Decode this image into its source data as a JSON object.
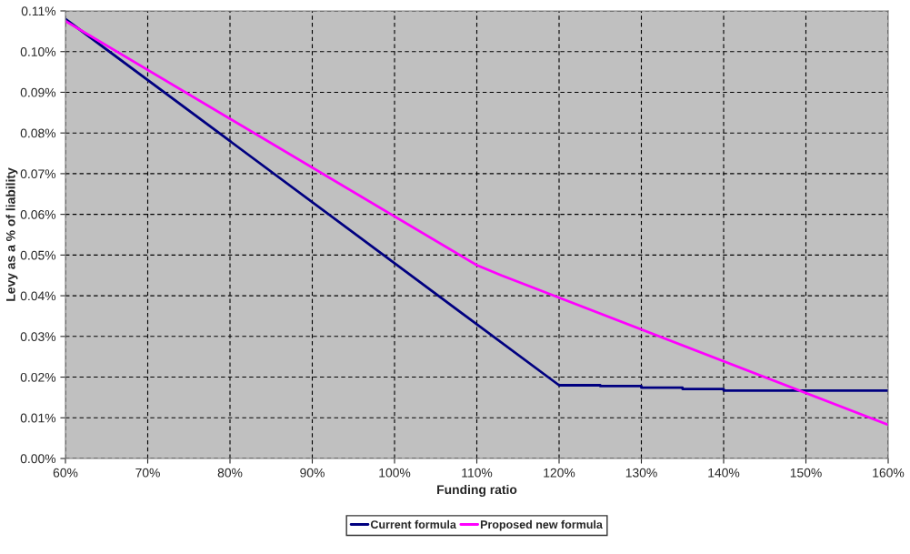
{
  "chart_data": {
    "type": "line",
    "xlabel": "Funding ratio",
    "ylabel": "Levy as a % of liability",
    "series": [
      {
        "name": "Current formula",
        "color": "#000080",
        "x": [
          60,
          120,
          125,
          125,
          130,
          130,
          135,
          135,
          140,
          140,
          160
        ],
        "values": [
          0.108,
          0.018,
          0.018,
          0.0178,
          0.0178,
          0.0174,
          0.0174,
          0.0171,
          0.0171,
          0.0167,
          0.0167
        ]
      },
      {
        "name": "Proposed new formula",
        "color": "#ff00ff",
        "x": [
          60,
          110,
          113,
          160
        ],
        "values": [
          0.1075,
          0.0475,
          0.045,
          0.0083
        ]
      }
    ],
    "xlim": [
      60,
      160
    ],
    "xticks": [
      {
        "value": 60,
        "label": "60%"
      },
      {
        "value": 70,
        "label": "70%"
      },
      {
        "value": 80,
        "label": "80%"
      },
      {
        "value": 90,
        "label": "90%"
      },
      {
        "value": 100,
        "label": "100%"
      },
      {
        "value": 110,
        "label": "110%"
      },
      {
        "value": 120,
        "label": "120%"
      },
      {
        "value": 130,
        "label": "130%"
      },
      {
        "value": 140,
        "label": "140%"
      },
      {
        "value": 150,
        "label": "150%"
      },
      {
        "value": 160,
        "label": "160%"
      }
    ],
    "ylim": [
      0,
      0.11
    ],
    "yticks": [
      {
        "value": 0,
        "label": "0.00%"
      },
      {
        "value": 0.01,
        "label": "0.01%"
      },
      {
        "value": 0.02,
        "label": "0.02%"
      },
      {
        "value": 0.03,
        "label": "0.03%"
      },
      {
        "value": 0.04,
        "label": "0.04%"
      },
      {
        "value": 0.05,
        "label": "0.05%"
      },
      {
        "value": 0.06,
        "label": "0.06%"
      },
      {
        "value": 0.07,
        "label": "0.07%"
      },
      {
        "value": 0.08,
        "label": "0.08%"
      },
      {
        "value": 0.09,
        "label": "0.09%"
      },
      {
        "value": 0.1,
        "label": "0.10%"
      },
      {
        "value": 0.11,
        "label": "0.11%"
      }
    ],
    "grid": true,
    "legend": "bottom",
    "line_style": "solid",
    "marker": "none"
  }
}
